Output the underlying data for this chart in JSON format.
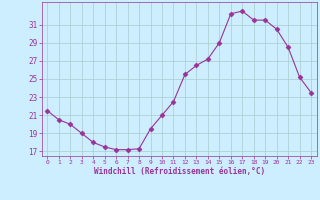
{
  "x": [
    0,
    1,
    2,
    3,
    4,
    5,
    6,
    7,
    8,
    9,
    10,
    11,
    12,
    13,
    14,
    15,
    16,
    17,
    18,
    19,
    20,
    21,
    22,
    23
  ],
  "y": [
    21.5,
    20.5,
    20.0,
    19.0,
    18.0,
    17.5,
    17.2,
    17.2,
    17.3,
    19.5,
    21.0,
    22.5,
    25.5,
    26.5,
    27.2,
    29.0,
    32.2,
    32.5,
    31.5,
    31.5,
    30.5,
    28.5,
    25.2,
    23.5
  ],
  "line_color": "#993399",
  "marker": "D",
  "marker_size": 2.5,
  "background_color": "#cceeff",
  "grid_color": "#aacccc",
  "ylabel_ticks": [
    17,
    19,
    21,
    23,
    25,
    27,
    29,
    31
  ],
  "xlabel": "Windchill (Refroidissement éolien,°C)",
  "xlim": [
    -0.5,
    23.5
  ],
  "ylim": [
    16.5,
    33.5
  ],
  "xtick_labels": [
    "0",
    "1",
    "2",
    "3",
    "4",
    "5",
    "6",
    "7",
    "8",
    "9",
    "10",
    "11",
    "12",
    "13",
    "14",
    "15",
    "16",
    "17",
    "18",
    "19",
    "20",
    "21",
    "22",
    "23"
  ],
  "xlabel_color": "#993399",
  "tick_color": "#993399"
}
